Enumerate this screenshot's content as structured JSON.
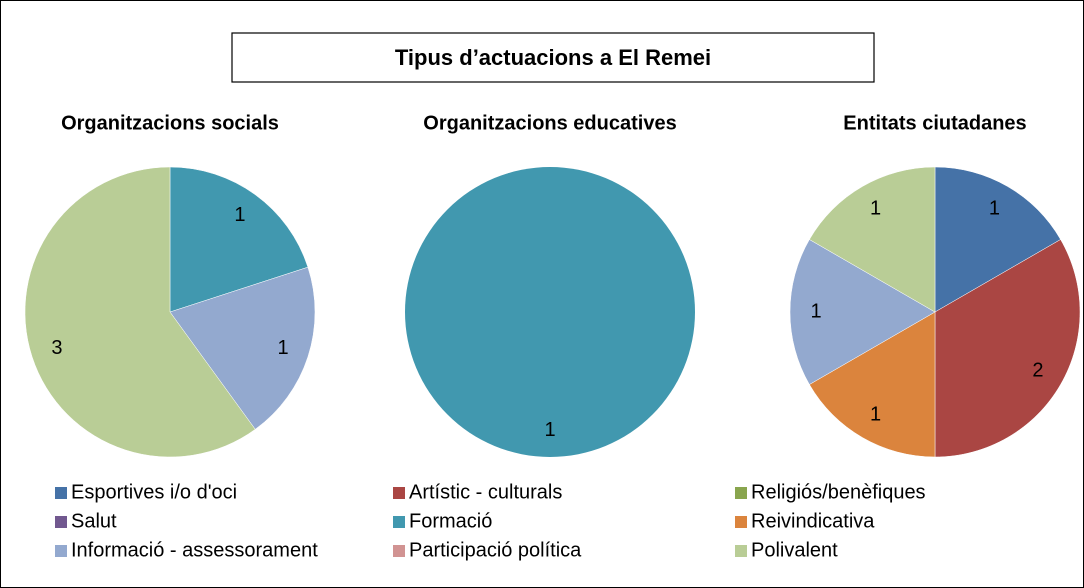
{
  "title": "Tipus d’actuacions a El Remei",
  "legend": [
    {
      "name": "Esportives i/o d'oci",
      "color": "#4572A7"
    },
    {
      "name": "Artístic - culturals",
      "color": "#AA4643"
    },
    {
      "name": "Religiós/benèfiques",
      "color": "#89A54E"
    },
    {
      "name": "Salut",
      "color": "#71588F"
    },
    {
      "name": "Formació",
      "color": "#4198AF"
    },
    {
      "name": "Reivindicativa",
      "color": "#DB843D"
    },
    {
      "name": "Informació - assessorament",
      "color": "#93A9CF"
    },
    {
      "name": "Participació política",
      "color": "#D19392"
    },
    {
      "name": "Polivalent",
      "color": "#B9CD96"
    }
  ],
  "chart_data": [
    {
      "type": "pie",
      "title": "Organitzacions socials",
      "categories": [
        "Formació",
        "Informació - assessorament",
        "Polivalent"
      ],
      "values": [
        1,
        1,
        3
      ]
    },
    {
      "type": "pie",
      "title": "Organitzacions educatives",
      "categories": [
        "Formació"
      ],
      "values": [
        1
      ]
    },
    {
      "type": "pie",
      "title": "Entitats ciutadanes",
      "categories": [
        "Esportives i/o d'oci",
        "Artístic - culturals",
        "Reivindicativa",
        "Informació - assessorament",
        "Polivalent"
      ],
      "values": [
        1,
        2,
        1,
        1,
        1
      ]
    }
  ]
}
